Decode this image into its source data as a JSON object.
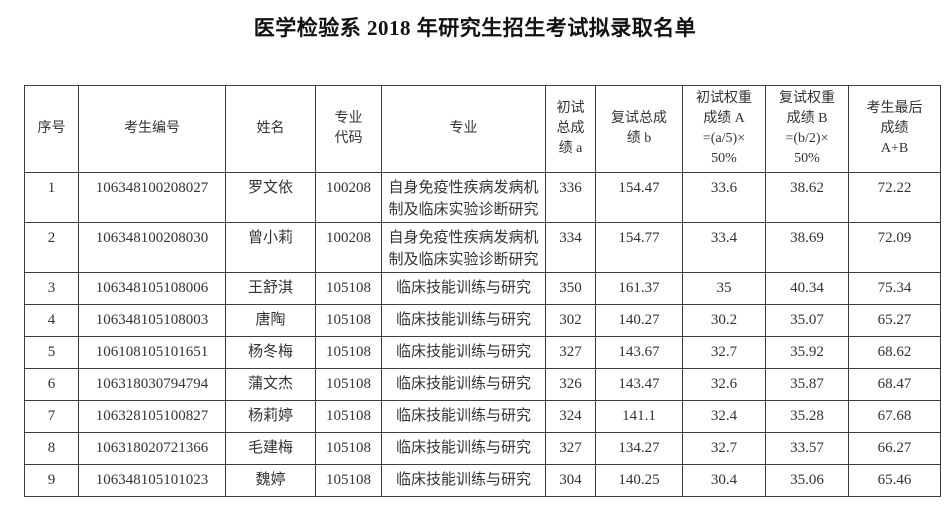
{
  "document": {
    "title": "医学检验系 2018 年研究生招生考试拟录取名单"
  },
  "table": {
    "columns": [
      {
        "key": "seq",
        "label": "序号"
      },
      {
        "key": "candidate_id",
        "label": "考生编号"
      },
      {
        "key": "name",
        "label": "姓名"
      },
      {
        "key": "major_code",
        "label": "专业\n代码"
      },
      {
        "key": "major",
        "label": "专业"
      },
      {
        "key": "initial_total",
        "label": "初试\n总成\n绩 a"
      },
      {
        "key": "retest_total",
        "label": "复试总成\n绩 b"
      },
      {
        "key": "initial_weighted",
        "label": "初试权重\n成绩 A\n=(a/5)×\n50%"
      },
      {
        "key": "retest_weighted",
        "label": "复试权重\n成绩 B\n=(b/2)×\n50%"
      },
      {
        "key": "final_total",
        "label": "考生最后\n成绩\nA+B"
      }
    ],
    "rows": [
      [
        "1",
        "106348100208027",
        "罗文依",
        "100208",
        "自身免疫性疾病发病机制及临床实验诊断研究",
        "336",
        "154.47",
        "33.6",
        "38.62",
        "72.22"
      ],
      [
        "2",
        "106348100208030",
        "曾小莉",
        "100208",
        "自身免疫性疾病发病机制及临床实验诊断研究",
        "334",
        "154.77",
        "33.4",
        "38.69",
        "72.09"
      ],
      [
        "3",
        "106348105108006",
        "王舒淇",
        "105108",
        "临床技能训练与研究",
        "350",
        "161.37",
        "35",
        "40.34",
        "75.34"
      ],
      [
        "4",
        "106348105108003",
        "唐陶",
        "105108",
        "临床技能训练与研究",
        "302",
        "140.27",
        "30.2",
        "35.07",
        "65.27"
      ],
      [
        "5",
        "106108105101651",
        "杨冬梅",
        "105108",
        "临床技能训练与研究",
        "327",
        "143.67",
        "32.7",
        "35.92",
        "68.62"
      ],
      [
        "6",
        "106318030794794",
        "蒲文杰",
        "105108",
        "临床技能训练与研究",
        "326",
        "143.47",
        "32.6",
        "35.87",
        "68.47"
      ],
      [
        "7",
        "106328105100827",
        "杨莉婷",
        "105108",
        "临床技能训练与研究",
        "324",
        "141.1",
        "32.4",
        "35.28",
        "67.68"
      ],
      [
        "8",
        "106318020721366",
        "毛建梅",
        "105108",
        "临床技能训练与研究",
        "327",
        "134.27",
        "32.7",
        "33.57",
        "66.27"
      ],
      [
        "9",
        "106348105101023",
        "魏婷",
        "105108",
        "临床技能训练与研究",
        "304",
        "140.25",
        "30.4",
        "35.06",
        "65.46"
      ]
    ]
  },
  "colors": {
    "background": "#ffffff",
    "border": "#3d3d3d",
    "body_text": "#333333",
    "title_text": "#111111"
  }
}
